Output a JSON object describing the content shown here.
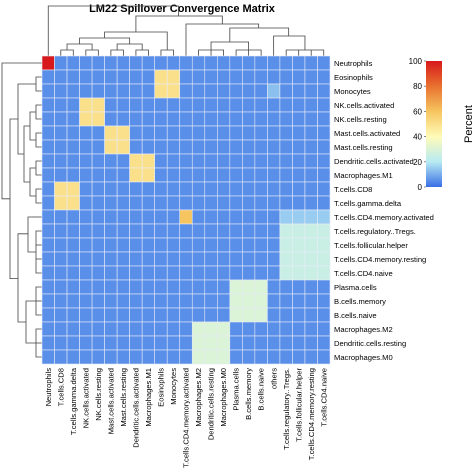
{
  "chart_data": {
    "type": "heatmap",
    "title": "LM22 Spillover Convergence Matrix",
    "rows": [
      "Neutrophils",
      "Eosinophils",
      "Monocytes",
      "NK.cells.activated",
      "NK.cells.resting",
      "Mast.cells.activated",
      "Mast.cells.resting",
      "Dendritic.cells.activated",
      "Macrophages.M1",
      "T.cells.CD8",
      "T.cells.gamma.delta",
      "T.cells.CD4.memory.activated",
      "T.cells.regulatory..Tregs.",
      "T.cells.follicular.helper",
      "T.cells.CD4.memory.resting",
      "T.cells.CD4.naive",
      "Plasma.cells",
      "B.cells.memory",
      "B.cells.naive",
      "Macrophages.M2",
      "Dendritic.cells.resting",
      "Macrophages.M0"
    ],
    "columns": [
      "Neutrophils",
      "T.cells.CD8",
      "T.cells.gamma.delta",
      "NK.cells.activated",
      "NK.cells.resting",
      "Mast.cells.activated",
      "Mast.cells.resting",
      "Dendritic.cells.activated",
      "Macrophages.M1",
      "Eosinophils",
      "Monocytes",
      "T.cells.CD4.memory.activated",
      "Macrophages.M2",
      "Dendritic.cells.resting",
      "Macrophages.M0",
      "Plasma.cells",
      "B.cells.memory",
      "B.cells.naive",
      "others",
      "T.cells.regulatory..Tregs.",
      "T.cells.follicular.helper",
      "T.cells.CD4.memory.resting",
      "T.cells.CD4.naive"
    ],
    "background_value": 5,
    "cells": [
      {
        "row": "Neutrophils",
        "col": "Neutrophils",
        "value": 100
      },
      {
        "row": "Eosinophils",
        "col": "Eosinophils",
        "value": 50
      },
      {
        "row": "Eosinophils",
        "col": "Monocytes",
        "value": 50
      },
      {
        "row": "Monocytes",
        "col": "Eosinophils",
        "value": 50
      },
      {
        "row": "Monocytes",
        "col": "Monocytes",
        "value": 50
      },
      {
        "row": "Monocytes",
        "col": "others",
        "value": 13
      },
      {
        "row": "NK.cells.activated",
        "col": "NK.cells.activated",
        "value": 50
      },
      {
        "row": "NK.cells.activated",
        "col": "NK.cells.resting",
        "value": 50
      },
      {
        "row": "NK.cells.resting",
        "col": "NK.cells.activated",
        "value": 50
      },
      {
        "row": "NK.cells.resting",
        "col": "NK.cells.resting",
        "value": 50
      },
      {
        "row": "Mast.cells.activated",
        "col": "Mast.cells.activated",
        "value": 50
      },
      {
        "row": "Mast.cells.activated",
        "col": "Mast.cells.resting",
        "value": 50
      },
      {
        "row": "Mast.cells.resting",
        "col": "Mast.cells.activated",
        "value": 50
      },
      {
        "row": "Mast.cells.resting",
        "col": "Mast.cells.resting",
        "value": 50
      },
      {
        "row": "Dendritic.cells.activated",
        "col": "Dendritic.cells.activated",
        "value": 50
      },
      {
        "row": "Dendritic.cells.activated",
        "col": "Macrophages.M1",
        "value": 50
      },
      {
        "row": "Macrophages.M1",
        "col": "Dendritic.cells.activated",
        "value": 50
      },
      {
        "row": "Macrophages.M1",
        "col": "Macrophages.M1",
        "value": 50
      },
      {
        "row": "T.cells.CD8",
        "col": "T.cells.CD8",
        "value": 50
      },
      {
        "row": "T.cells.CD8",
        "col": "T.cells.gamma.delta",
        "value": 50
      },
      {
        "row": "T.cells.gamma.delta",
        "col": "T.cells.CD8",
        "value": 50
      },
      {
        "row": "T.cells.gamma.delta",
        "col": "T.cells.gamma.delta",
        "value": 50
      },
      {
        "row": "T.cells.CD4.memory.activated",
        "col": "T.cells.CD4.memory.activated",
        "value": 60
      },
      {
        "row": "T.cells.CD4.memory.activated",
        "col": "T.cells.regulatory..Tregs.",
        "value": 15
      },
      {
        "row": "T.cells.CD4.memory.activated",
        "col": "T.cells.follicular.helper",
        "value": 15
      },
      {
        "row": "T.cells.CD4.memory.activated",
        "col": "T.cells.CD4.memory.resting",
        "value": 15
      },
      {
        "row": "T.cells.CD4.memory.activated",
        "col": "T.cells.CD4.naive",
        "value": 15
      },
      {
        "row": "T.cells.regulatory..Tregs.",
        "col": "T.cells.regulatory..Tregs.",
        "value": 25
      },
      {
        "row": "T.cells.regulatory..Tregs.",
        "col": "T.cells.follicular.helper",
        "value": 25
      },
      {
        "row": "T.cells.regulatory..Tregs.",
        "col": "T.cells.CD4.memory.resting",
        "value": 25
      },
      {
        "row": "T.cells.regulatory..Tregs.",
        "col": "T.cells.CD4.naive",
        "value": 25
      },
      {
        "row": "T.cells.follicular.helper",
        "col": "T.cells.regulatory..Tregs.",
        "value": 25
      },
      {
        "row": "T.cells.follicular.helper",
        "col": "T.cells.follicular.helper",
        "value": 25
      },
      {
        "row": "T.cells.follicular.helper",
        "col": "T.cells.CD4.memory.resting",
        "value": 25
      },
      {
        "row": "T.cells.follicular.helper",
        "col": "T.cells.CD4.naive",
        "value": 25
      },
      {
        "row": "T.cells.CD4.memory.resting",
        "col": "T.cells.regulatory..Tregs.",
        "value": 25
      },
      {
        "row": "T.cells.CD4.memory.resting",
        "col": "T.cells.follicular.helper",
        "value": 25
      },
      {
        "row": "T.cells.CD4.memory.resting",
        "col": "T.cells.CD4.memory.resting",
        "value": 25
      },
      {
        "row": "T.cells.CD4.memory.resting",
        "col": "T.cells.CD4.naive",
        "value": 25
      },
      {
        "row": "T.cells.CD4.naive",
        "col": "T.cells.regulatory..Tregs.",
        "value": 25
      },
      {
        "row": "T.cells.CD4.naive",
        "col": "T.cells.follicular.helper",
        "value": 25
      },
      {
        "row": "T.cells.CD4.naive",
        "col": "T.cells.CD4.memory.resting",
        "value": 25
      },
      {
        "row": "T.cells.CD4.naive",
        "col": "T.cells.CD4.naive",
        "value": 25
      },
      {
        "row": "Plasma.cells",
        "col": "Plasma.cells",
        "value": 30
      },
      {
        "row": "Plasma.cells",
        "col": "B.cells.memory",
        "value": 30
      },
      {
        "row": "Plasma.cells",
        "col": "B.cells.naive",
        "value": 30
      },
      {
        "row": "B.cells.memory",
        "col": "Plasma.cells",
        "value": 30
      },
      {
        "row": "B.cells.memory",
        "col": "B.cells.memory",
        "value": 30
      },
      {
        "row": "B.cells.memory",
        "col": "B.cells.naive",
        "value": 30
      },
      {
        "row": "B.cells.naive",
        "col": "Plasma.cells",
        "value": 30
      },
      {
        "row": "B.cells.naive",
        "col": "B.cells.memory",
        "value": 30
      },
      {
        "row": "B.cells.naive",
        "col": "B.cells.naive",
        "value": 30
      },
      {
        "row": "Macrophages.M2",
        "col": "Macrophages.M2",
        "value": 30
      },
      {
        "row": "Macrophages.M2",
        "col": "Dendritic.cells.resting",
        "value": 30
      },
      {
        "row": "Macrophages.M2",
        "col": "Macrophages.M0",
        "value": 30
      },
      {
        "row": "Dendritic.cells.resting",
        "col": "Macrophages.M2",
        "value": 30
      },
      {
        "row": "Dendritic.cells.resting",
        "col": "Dendritic.cells.resting",
        "value": 30
      },
      {
        "row": "Dendritic.cells.resting",
        "col": "Macrophages.M0",
        "value": 30
      },
      {
        "row": "Macrophages.M0",
        "col": "Macrophages.M2",
        "value": 30
      },
      {
        "row": "Macrophages.M0",
        "col": "Dendritic.cells.resting",
        "value": 30
      },
      {
        "row": "Macrophages.M0",
        "col": "Macrophages.M0",
        "value": 30
      }
    ],
    "legend": {
      "title": "Percent",
      "position": "right",
      "range": [
        0,
        100
      ],
      "ticks": [
        0,
        20,
        40,
        60,
        80,
        100
      ],
      "colors": [
        "#3a6fe6",
        "#b7ebf3",
        "#fffbb8",
        "#f6c560",
        "#e8712f",
        "#d7191c"
      ]
    },
    "grid": true
  }
}
